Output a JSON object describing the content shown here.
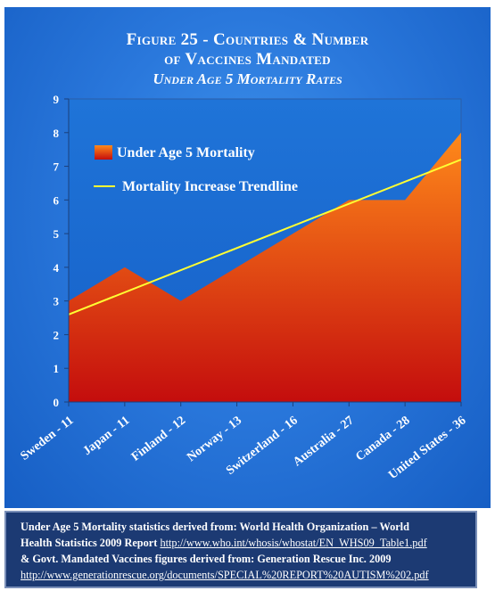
{
  "title": {
    "line1": "Figure 25 - Countries & Number",
    "line2": "of Vaccines Mandated",
    "line3": "Under Age 5 Mortality Rates"
  },
  "chart_data": {
    "type": "area",
    "categories": [
      "Sweden - 11",
      "Japan - 11",
      "Finland - 12",
      "Norway - 13",
      "Switzerland - 16",
      "Australia - 27",
      "Canada - 28",
      "United States - 36"
    ],
    "series": [
      {
        "name": "Under Age 5 Mortality",
        "type": "area",
        "values": [
          3,
          4,
          3,
          4,
          5,
          6,
          6,
          8
        ]
      },
      {
        "name": "Mortality Increase Trendline",
        "type": "line",
        "values": [
          2.6,
          3.2,
          3.8,
          4.4,
          5.1,
          5.9,
          6.5,
          7.2
        ]
      }
    ],
    "ylim": [
      0,
      9
    ],
    "yticks": [
      "0",
      "1",
      "2",
      "3",
      "4",
      "5",
      "6",
      "7",
      "8",
      "9"
    ],
    "grid": false,
    "legend": "top-left",
    "colors": {
      "area_top": "#ff8a1a",
      "area_bottom": "#c40d0d",
      "trend": "#ffff33",
      "plot_bg": "#1a6bd0"
    }
  },
  "source": {
    "line1": "Under Age 5 Mortality statistics derived from: World Health Organization – World",
    "line2_text": "Health Statistics 2009 Report ",
    "line2_link": "http://www.who.int/whosis/whostat/EN_WHS09_Table1.pdf",
    "line3": "& Govt. Mandated Vaccines figures derived from: Generation Rescue Inc. 2009",
    "line4_link": "http://www.generationrescue.org/documents/SPECIAL%20REPORT%20AUTISM%202.pdf"
  }
}
